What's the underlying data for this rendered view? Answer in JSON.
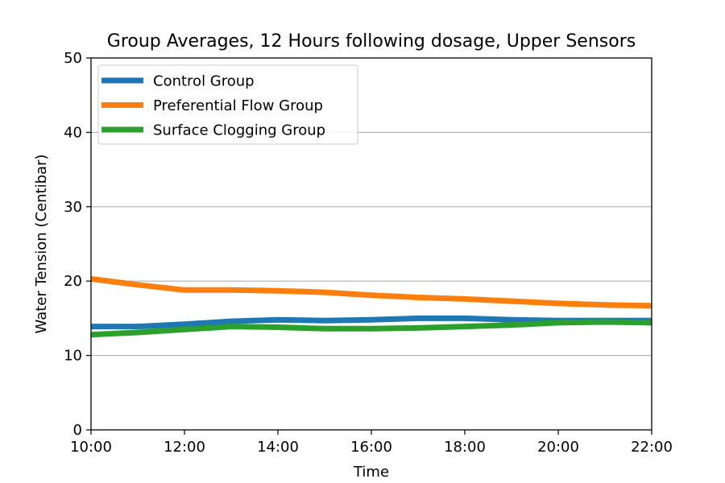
{
  "chart_data": {
    "type": "line",
    "title": "Group Averages, 12 Hours following dosage, Upper Sensors",
    "xlabel": "Time",
    "ylabel": "Water Tension (Centibar)",
    "x": [
      "10:00",
      "11:00",
      "12:00",
      "13:00",
      "14:00",
      "15:00",
      "16:00",
      "17:00",
      "18:00",
      "19:00",
      "20:00",
      "21:00",
      "22:00"
    ],
    "xticks": [
      "10:00",
      "12:00",
      "14:00",
      "16:00",
      "18:00",
      "20:00",
      "22:00"
    ],
    "yticks": [
      0,
      10,
      20,
      30,
      40,
      50
    ],
    "ylim": [
      0,
      50
    ],
    "grid": "horizontal",
    "legend": "top-left",
    "series": [
      {
        "name": "Control Group",
        "color": "#1f77b4",
        "values": [
          13.9,
          13.9,
          14.2,
          14.6,
          14.8,
          14.7,
          14.8,
          15.0,
          15.0,
          14.8,
          14.7,
          14.7,
          14.7
        ]
      },
      {
        "name": "Preferential Flow Group",
        "color": "#ff7f0e",
        "values": [
          20.3,
          19.5,
          18.8,
          18.8,
          18.7,
          18.5,
          18.1,
          17.8,
          17.6,
          17.3,
          17.0,
          16.8,
          16.7
        ]
      },
      {
        "name": "Surface Clogging Group",
        "color": "#2ca02c",
        "values": [
          12.8,
          13.1,
          13.5,
          13.9,
          13.8,
          13.6,
          13.6,
          13.7,
          13.9,
          14.1,
          14.4,
          14.5,
          14.4
        ]
      }
    ]
  }
}
